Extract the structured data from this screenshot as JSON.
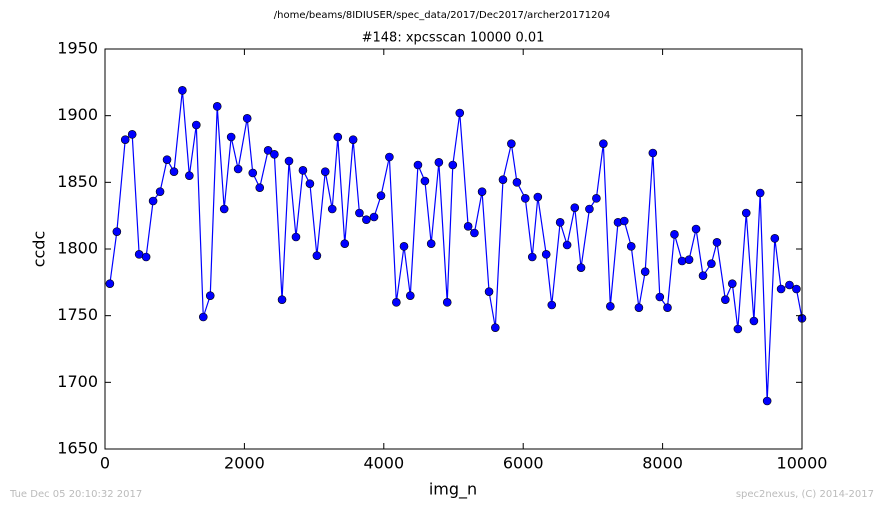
{
  "chart_data": {
    "type": "line",
    "suptitle": "/home/beams/8IDIUSER/spec_data/2017/Dec2017/archer20171204",
    "title": "#148: xpcsscan 10000 0.01",
    "xlabel": "img_n",
    "ylabel": "ccdc",
    "footer_left": "Tue Dec 05 20:10:32 2017",
    "footer_right": "spec2nexus, (C) 2014-2017",
    "xlim": [
      0,
      10000
    ],
    "xticks": [
      0,
      2000,
      4000,
      6000,
      8000,
      10000
    ],
    "ylim": [
      1650,
      1950
    ],
    "yticks": [
      1650,
      1700,
      1750,
      1800,
      1850,
      1900,
      1950
    ],
    "grid": false,
    "x": [
      70,
      170,
      290,
      390,
      490,
      590,
      690,
      790,
      890,
      990,
      1110,
      1210,
      1310,
      1410,
      1510,
      1610,
      1710,
      1810,
      1910,
      2040,
      2120,
      2220,
      2340,
      2430,
      2540,
      2640,
      2740,
      2840,
      2940,
      3040,
      3160,
      3260,
      3340,
      3440,
      3560,
      3650,
      3750,
      3860,
      3960,
      4080,
      4180,
      4290,
      4380,
      4490,
      4590,
      4680,
      4790,
      4910,
      4990,
      5090,
      5210,
      5300,
      5410,
      5510,
      5600,
      5710,
      5830,
      5910,
      6030,
      6130,
      6210,
      6330,
      6410,
      6530,
      6630,
      6740,
      6830,
      6950,
      7050,
      7150,
      7250,
      7360,
      7450,
      7550,
      7660,
      7750,
      7860,
      7960,
      8070,
      8170,
      8280,
      8380,
      8480,
      8580,
      8700,
      8780,
      8900,
      9000,
      9080,
      9200,
      9310,
      9400,
      9500,
      9610,
      9700,
      9820,
      9920,
      10000
    ],
    "series": [
      {
        "name": "ccdc",
        "color": "#0000ff",
        "values": [
          1774,
          1813,
          1882,
          1886,
          1796,
          1794,
          1836,
          1843,
          1867,
          1858,
          1919,
          1855,
          1893,
          1749,
          1765,
          1907,
          1830,
          1884,
          1860,
          1898,
          1857,
          1846,
          1874,
          1871,
          1762,
          1866,
          1809,
          1859,
          1849,
          1795,
          1858,
          1830,
          1884,
          1804,
          1882,
          1827,
          1822,
          1824,
          1840,
          1869,
          1760,
          1802,
          1765,
          1863,
          1851,
          1804,
          1865,
          1760,
          1863,
          1902,
          1817,
          1812,
          1843,
          1768,
          1741,
          1852,
          1879,
          1850,
          1838,
          1794,
          1839,
          1796,
          1758,
          1820,
          1803,
          1831,
          1786,
          1830,
          1838,
          1879,
          1757,
          1820,
          1821,
          1802,
          1756,
          1783,
          1872,
          1764,
          1756,
          1811,
          1791,
          1792,
          1815,
          1780,
          1789,
          1805,
          1762,
          1774,
          1740,
          1827,
          1746,
          1842,
          1686,
          1808,
          1770,
          1773,
          1770,
          1748
        ]
      }
    ]
  }
}
